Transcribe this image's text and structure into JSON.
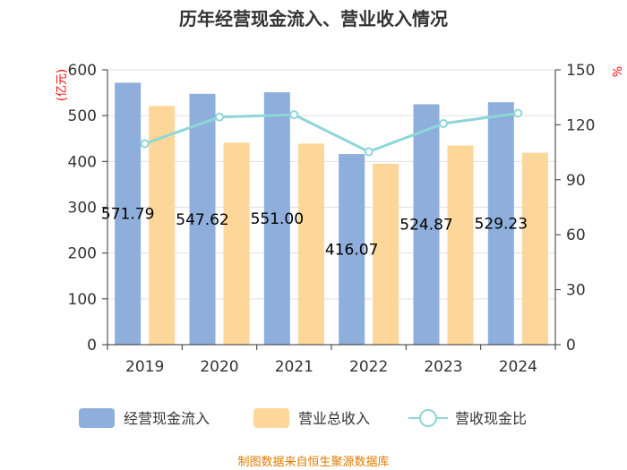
{
  "chart_data": {
    "type": "bar",
    "title": "历年经营现金流入、营业收入情况",
    "categories": [
      "2019",
      "2020",
      "2021",
      "2022",
      "2023",
      "2024"
    ],
    "left_unit": "(亿元)",
    "right_unit": "%",
    "left_ylim": [
      0,
      600
    ],
    "left_ticks": [
      "0",
      "100",
      "200",
      "300",
      "400",
      "500",
      "600"
    ],
    "right_ylim": [
      0,
      150
    ],
    "right_ticks": [
      "0",
      "30",
      "60",
      "90",
      "120",
      "150"
    ],
    "grid": true,
    "legend_position": "bottom",
    "series": [
      {
        "name": "经营现金流入",
        "type": "bar",
        "axis": "left",
        "color": "#8eaedb",
        "values": [
          571.79,
          547.62,
          551.0,
          416.07,
          524.87,
          529.23
        ],
        "labels": [
          "571.79",
          "547.62",
          "551.00",
          "416.07",
          "524.87",
          "529.23"
        ]
      },
      {
        "name": "营业总收入",
        "type": "bar",
        "axis": "left",
        "color": "#fdd699",
        "values": [
          521,
          441,
          439,
          395,
          435,
          419
        ]
      },
      {
        "name": "营收现金比",
        "type": "line",
        "axis": "right",
        "color": "#8ed6d9",
        "values": [
          109.7,
          124.2,
          125.5,
          105.3,
          120.7,
          126.3
        ]
      }
    ]
  },
  "source_text": "制图数据来自恒生聚源数据库"
}
